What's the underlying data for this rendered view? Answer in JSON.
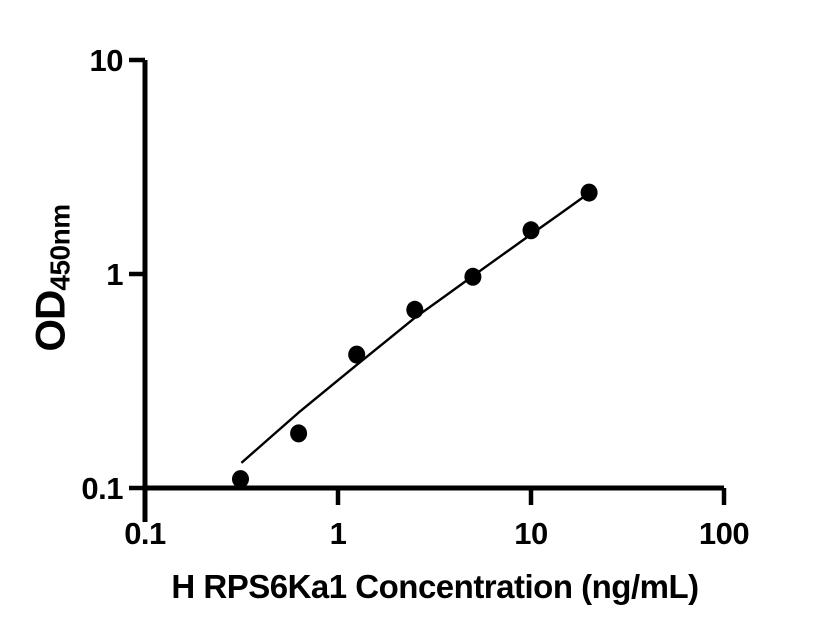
{
  "chart_data": {
    "type": "scatter",
    "title": "",
    "xlabel": "H RPS6Ka1 Concentration (ng/mL)",
    "ylabel_main": "OD",
    "ylabel_sub": "450nm",
    "xscale": "log",
    "yscale": "log",
    "xlim": [
      0.1,
      100
    ],
    "ylim": [
      0.1,
      10
    ],
    "grid": false,
    "legend": false,
    "x_ticks": [
      {
        "value": 0.1,
        "label": "0.1"
      },
      {
        "value": 1,
        "label": "1"
      },
      {
        "value": 10,
        "label": "10"
      },
      {
        "value": 100,
        "label": "100"
      }
    ],
    "y_ticks": [
      {
        "value": 0.1,
        "label": "0.1"
      },
      {
        "value": 1,
        "label": "1"
      },
      {
        "value": 10,
        "label": "10"
      }
    ],
    "series": [
      {
        "name": "standard-points",
        "type": "scatter",
        "marker": "filled-circle",
        "color": "#000000",
        "x": [
          0.3125,
          0.625,
          1.25,
          2.5,
          5,
          10,
          20
        ],
        "y": [
          0.11,
          0.18,
          0.42,
          0.68,
          0.97,
          1.6,
          2.4
        ]
      }
    ],
    "fit_curve": {
      "name": "standard-curve-fit-line",
      "color": "#000000",
      "x": [
        0.316,
        0.445,
        0.625,
        0.884,
        1.25,
        1.77,
        2.5,
        3.54,
        5,
        7.07,
        10,
        14.1,
        20
      ],
      "y": [
        0.131,
        0.172,
        0.225,
        0.291,
        0.376,
        0.485,
        0.624,
        0.782,
        0.979,
        1.224,
        1.531,
        1.908,
        2.39
      ]
    },
    "colors": {
      "points": "#000000",
      "curve": "#000000",
      "axis": "#000000",
      "text": "#000000",
      "background": "#ffffff"
    }
  }
}
